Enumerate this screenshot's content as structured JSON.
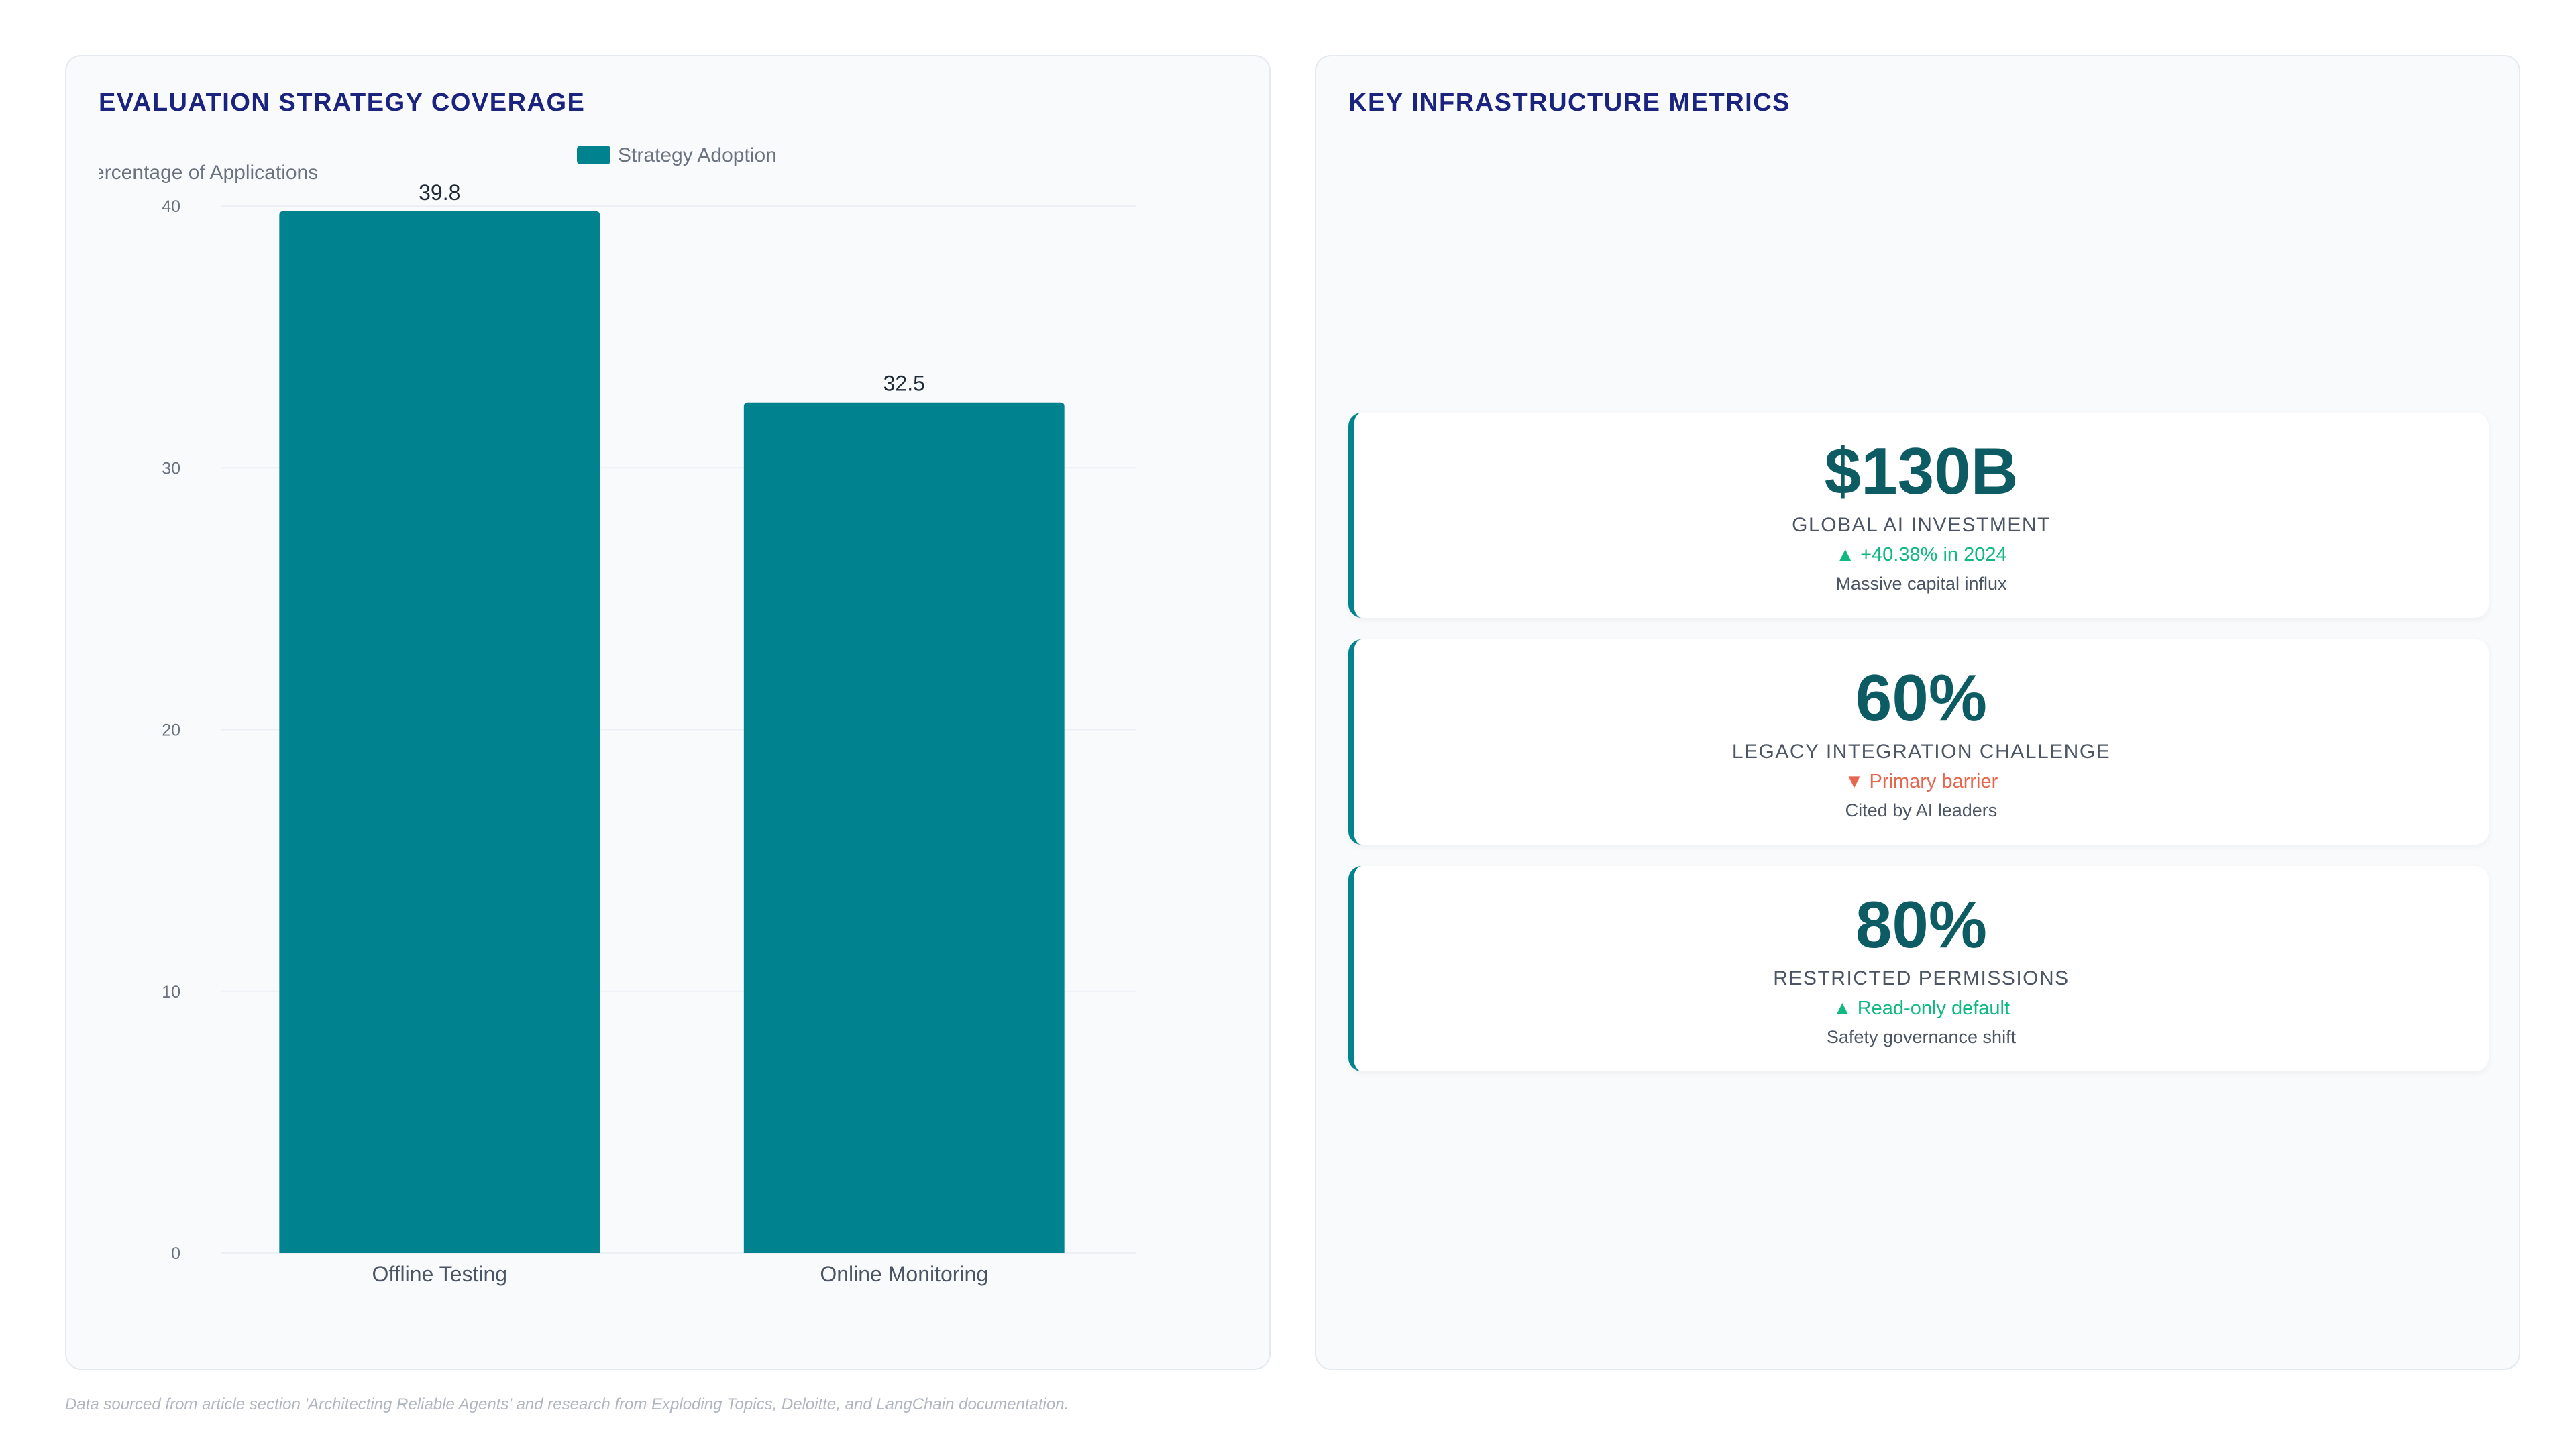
{
  "left_panel": {
    "title": "EVALUATION STRATEGY COVERAGE"
  },
  "right_panel": {
    "title": "KEY INFRASTRUCTURE METRICS",
    "cards": [
      {
        "value": "$130B",
        "label": "GLOBAL AI INVESTMENT",
        "trend": "▲ +40.38% in 2024",
        "trend_color": "#10b981",
        "note": "Massive capital influx"
      },
      {
        "value": "60%",
        "label": "LEGACY INTEGRATION CHALLENGE",
        "trend": "▼ Primary barrier",
        "trend_color": "#e5674f",
        "note": "Cited by AI leaders"
      },
      {
        "value": "80%",
        "label": "RESTRICTED PERMISSIONS",
        "trend": "▲ Read-only default",
        "trend_color": "#10b981",
        "note": "Safety governance shift"
      }
    ]
  },
  "footer": {
    "note": "Data sourced from article section 'Architecting Reliable Agents' and research from Exploding Topics, Deloitte, and LangChain documentation."
  },
  "colors": {
    "bar": "#00838f",
    "title": "#1a237e",
    "metric_value": "#0d5c63"
  },
  "chart_data": {
    "type": "bar",
    "categories": [
      "Offline Testing",
      "Online Monitoring"
    ],
    "series": [
      {
        "name": "Strategy Adoption",
        "values": [
          39.8,
          32.5
        ]
      }
    ],
    "ylabel": "Percentage of Applications",
    "ylim": [
      0,
      40
    ],
    "yticks": [
      "0",
      "10",
      "20",
      "30",
      "40"
    ],
    "data_labels": [
      "39.8",
      "32.5"
    ],
    "legend_position": "top",
    "grid": true
  }
}
